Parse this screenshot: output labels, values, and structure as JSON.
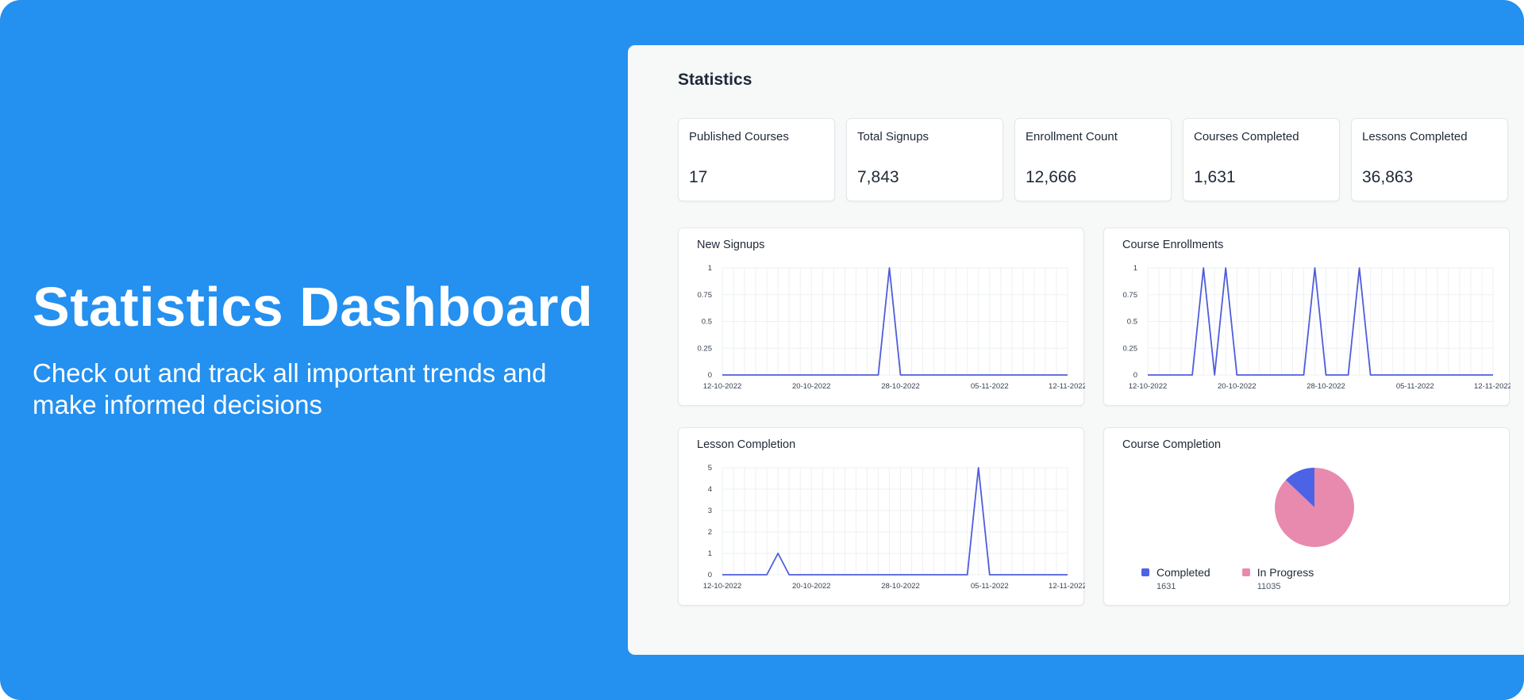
{
  "hero": {
    "title": "Statistics Dashboard",
    "subtitle": "Check out and track all important trends and make informed decisions"
  },
  "panel": {
    "title": "Statistics"
  },
  "stats": [
    {
      "label": "Published Courses",
      "value": "17"
    },
    {
      "label": "Total Signups",
      "value": "7,843"
    },
    {
      "label": "Enrollment Count",
      "value": "12,666"
    },
    {
      "label": "Courses Completed",
      "value": "1,631"
    },
    {
      "label": "Lessons Completed",
      "value": "36,863"
    }
  ],
  "colors": {
    "banner": "#2490ef",
    "line": "#4f5ddb",
    "completed": "#4c63e6",
    "in_progress": "#e88aae"
  },
  "chart_data": [
    {
      "type": "line",
      "title": "New Signups",
      "x_ticks": [
        "12-10-2022",
        "20-10-2022",
        "28-10-2022",
        "05-11-2022",
        "12-11-2022"
      ],
      "y_ticks": [
        "0",
        "0.25",
        "0.5",
        "0.75",
        "1"
      ],
      "ylim": [
        0,
        1
      ],
      "grid": true,
      "x": [
        "12-10-2022",
        "13-10-2022",
        "14-10-2022",
        "15-10-2022",
        "16-10-2022",
        "17-10-2022",
        "18-10-2022",
        "19-10-2022",
        "20-10-2022",
        "21-10-2022",
        "22-10-2022",
        "23-10-2022",
        "24-10-2022",
        "25-10-2022",
        "26-10-2022",
        "27-10-2022",
        "28-10-2022",
        "29-10-2022",
        "30-10-2022",
        "31-10-2022",
        "01-11-2022",
        "02-11-2022",
        "03-11-2022",
        "04-11-2022",
        "05-11-2022",
        "06-11-2022",
        "07-11-2022",
        "08-11-2022",
        "09-11-2022",
        "10-11-2022",
        "11-11-2022",
        "12-11-2022"
      ],
      "values": [
        0,
        0,
        0,
        0,
        0,
        0,
        0,
        0,
        0,
        0,
        0,
        0,
        0,
        0,
        0,
        1,
        0,
        0,
        0,
        0,
        0,
        0,
        0,
        0,
        0,
        0,
        0,
        0,
        0,
        0,
        0,
        0
      ]
    },
    {
      "type": "line",
      "title": "Course Enrollments",
      "x_ticks": [
        "12-10-2022",
        "20-10-2022",
        "28-10-2022",
        "05-11-2022",
        "12-11-2022"
      ],
      "y_ticks": [
        "0",
        "0.25",
        "0.5",
        "0.75",
        "1"
      ],
      "ylim": [
        0,
        1
      ],
      "grid": true,
      "x": [
        "12-10-2022",
        "13-10-2022",
        "14-10-2022",
        "15-10-2022",
        "16-10-2022",
        "17-10-2022",
        "18-10-2022",
        "19-10-2022",
        "20-10-2022",
        "21-10-2022",
        "22-10-2022",
        "23-10-2022",
        "24-10-2022",
        "25-10-2022",
        "26-10-2022",
        "27-10-2022",
        "28-10-2022",
        "29-10-2022",
        "30-10-2022",
        "31-10-2022",
        "01-11-2022",
        "02-11-2022",
        "03-11-2022",
        "04-11-2022",
        "05-11-2022",
        "06-11-2022",
        "07-11-2022",
        "08-11-2022",
        "09-11-2022",
        "10-11-2022",
        "11-11-2022",
        "12-11-2022"
      ],
      "values": [
        0,
        0,
        0,
        0,
        0,
        1,
        0,
        1,
        0,
        0,
        0,
        0,
        0,
        0,
        0,
        1,
        0,
        0,
        0,
        1,
        0,
        0,
        0,
        0,
        0,
        0,
        0,
        0,
        0,
        0,
        0,
        0
      ]
    },
    {
      "type": "line",
      "title": "Lesson Completion",
      "x_ticks": [
        "12-10-2022",
        "20-10-2022",
        "28-10-2022",
        "05-11-2022",
        "12-11-2022"
      ],
      "y_ticks": [
        "0",
        "1",
        "2",
        "3",
        "4",
        "5"
      ],
      "ylim": [
        0,
        5
      ],
      "grid": true,
      "x": [
        "12-10-2022",
        "13-10-2022",
        "14-10-2022",
        "15-10-2022",
        "16-10-2022",
        "17-10-2022",
        "18-10-2022",
        "19-10-2022",
        "20-10-2022",
        "21-10-2022",
        "22-10-2022",
        "23-10-2022",
        "24-10-2022",
        "25-10-2022",
        "26-10-2022",
        "27-10-2022",
        "28-10-2022",
        "29-10-2022",
        "30-10-2022",
        "31-10-2022",
        "01-11-2022",
        "02-11-2022",
        "03-11-2022",
        "04-11-2022",
        "05-11-2022",
        "06-11-2022",
        "07-11-2022",
        "08-11-2022",
        "09-11-2022",
        "10-11-2022",
        "11-11-2022",
        "12-11-2022"
      ],
      "values": [
        0,
        0,
        0,
        0,
        0,
        1,
        0,
        0,
        0,
        0,
        0,
        0,
        0,
        0,
        0,
        0,
        0,
        0,
        0,
        0,
        0,
        0,
        0,
        5,
        0,
        0,
        0,
        0,
        0,
        0,
        0,
        0
      ]
    },
    {
      "type": "pie",
      "title": "Course Completion",
      "labels": [
        "Completed",
        "In Progress"
      ],
      "values": [
        1631,
        11035
      ],
      "value_labels": [
        "1631",
        "11035"
      ],
      "legend": "bottom"
    }
  ]
}
